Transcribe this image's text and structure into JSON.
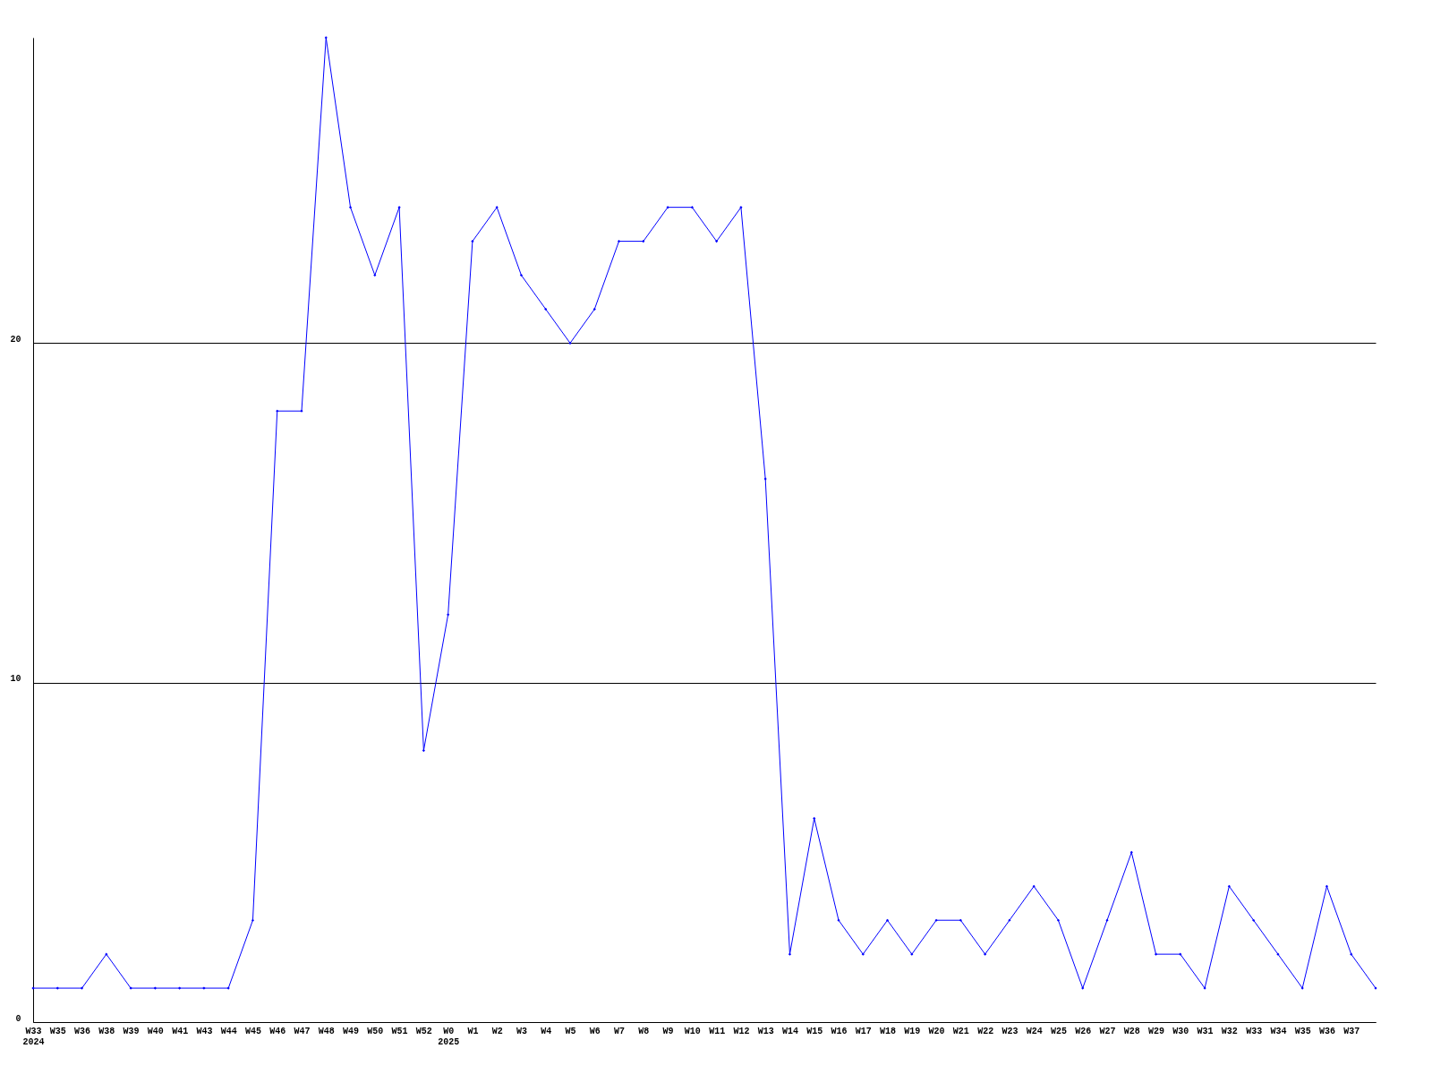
{
  "chart_data": {
    "type": "line",
    "categories": [
      "W33\n2024",
      "W35",
      "W36",
      "W38",
      "W39",
      "W40",
      "W41",
      "W43",
      "W44",
      "W45",
      "W46",
      "W47",
      "W48",
      "W49",
      "W50",
      "W51",
      "W52",
      "W0\n2025",
      "W1",
      "W2",
      "W3",
      "W4",
      "W5",
      "W6",
      "W7",
      "W8",
      "W9",
      "W10",
      "W11",
      "W12",
      "W13",
      "W14",
      "W15",
      "W16",
      "W17",
      "W18",
      "W19",
      "W20",
      "W21",
      "W22",
      "W23",
      "W24",
      "W25",
      "W26",
      "W27",
      "W28",
      "W29",
      "W30",
      "W31",
      "W32",
      "W33",
      "W34",
      "W35",
      "W36",
      "W37",
      null
    ],
    "series": [
      {
        "color": "#0000ff",
        "values": [
          1,
          1,
          1,
          2,
          1,
          1,
          1,
          1,
          1,
          3,
          18,
          18,
          29,
          24,
          22,
          24,
          8,
          12,
          23,
          24,
          22,
          21,
          20,
          21,
          23,
          23,
          24,
          24,
          23,
          24,
          16,
          2,
          6,
          3,
          2,
          3,
          2,
          3,
          3,
          2,
          3,
          4,
          3,
          1,
          3,
          5,
          2,
          2,
          1,
          4,
          3,
          2,
          1,
          4,
          2,
          1
        ]
      }
    ],
    "ylim": [
      0,
      29
    ],
    "yticks": [
      0,
      10,
      20
    ],
    "grid": "y",
    "marker": "diamond",
    "line_style": "solid"
  }
}
